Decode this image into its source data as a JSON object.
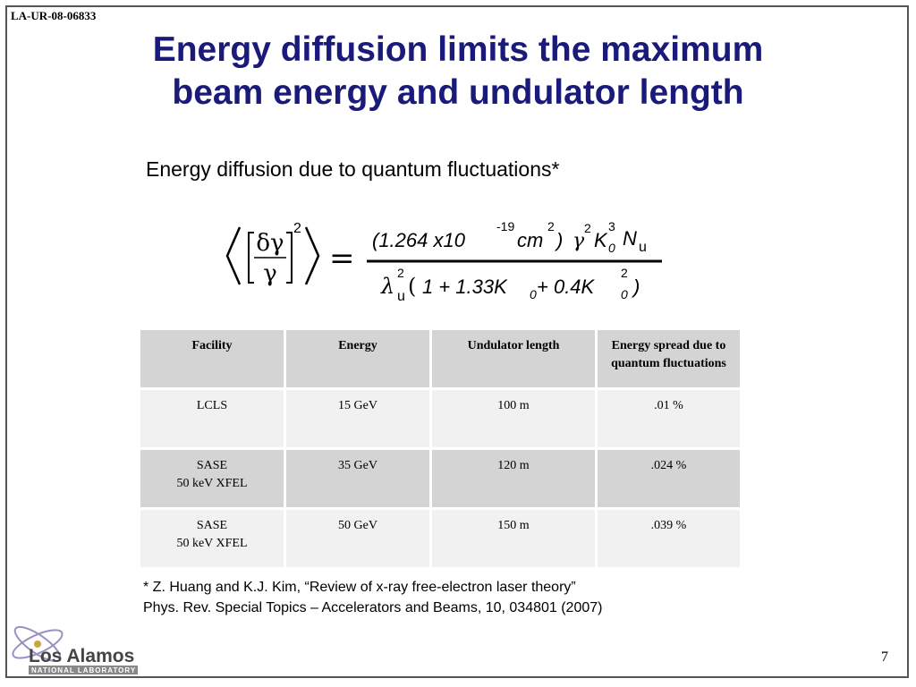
{
  "header": {
    "report_id": "LA-UR-08-06833"
  },
  "slide": {
    "title_line1": "Energy diffusion limits the maximum",
    "title_line2": "beam energy and undulator length",
    "subtitle": "Energy diffusion due to quantum fluctuations*"
  },
  "formula": {
    "lhs_num": "δγ",
    "lhs_den": "γ",
    "lhs_exp": "2",
    "equals": "=",
    "num_coef": "(1.264 x10",
    "num_coef_exp": "-19",
    "num_unit": "cm",
    "num_unit_exp": "2",
    "num_close": ")",
    "gamma": "γ",
    "gamma_exp": "2",
    "K": "K",
    "K_sub": "0",
    "K_exp": "3",
    "N": "N",
    "N_sub": "u",
    "den_lambda": "λ",
    "den_lambda_exp": "2",
    "den_lambda_sub": "u",
    "den_open": "(",
    "den_body1": "1 + 1.33K",
    "den_sub1": "0",
    "den_body2": " + 0.4K",
    "den_sub2": "0",
    "den_exp2": "2",
    "den_close": ")"
  },
  "table": {
    "headers": [
      "Facility",
      "Energy",
      "Undulator length",
      "Energy spread due to quantum fluctuations"
    ],
    "rows": [
      {
        "facility_line1": "LCLS",
        "facility_line2": "",
        "energy": "15 GeV",
        "length": "100 m",
        "spread": ".01 %"
      },
      {
        "facility_line1": "SASE",
        "facility_line2": "50 keV XFEL",
        "energy": "35 GeV",
        "length": "120 m",
        "spread": ".024 %"
      },
      {
        "facility_line1": "SASE",
        "facility_line2": "50 keV XFEL",
        "energy": "50 GeV",
        "length": "150 m",
        "spread": ".039 %"
      }
    ]
  },
  "footnote": {
    "line1": "* Z. Huang and K.J. Kim, “Review of x-ray free-electron laser theory”",
    "line2": "Phys. Rev. Special Topics – Accelerators and Beams, 10, 034801 (2007)"
  },
  "footer": {
    "page_number": "7",
    "logo_text": "Los Alamos",
    "logo_subtext": "NATIONAL LABORATORY"
  },
  "colors": {
    "title": "#1a1a7a",
    "header_cell": "#d4d4d4",
    "light_cell": "#f1f1f1"
  }
}
